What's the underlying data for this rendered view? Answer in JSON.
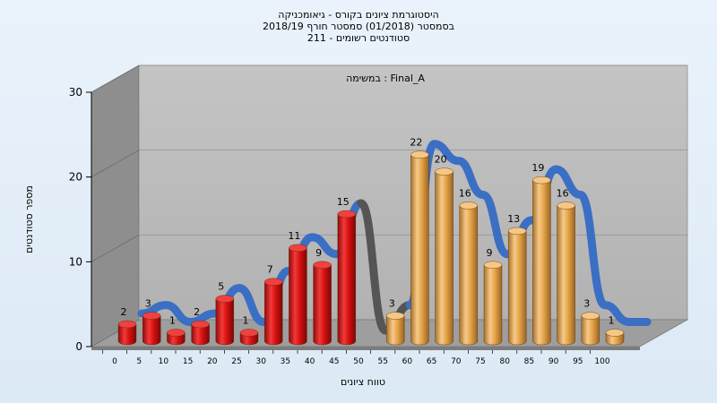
{
  "chart_data": {
    "type": "bar",
    "title_lines": [
      "היסטוגרמת ציונים בקורס - גיאומכניקה",
      "בסמסטר  (01/2018)  סמסטר חורף 2018/19",
      "סטודנטים רשומים - 211"
    ],
    "inner_label": "Final_A : במשימה",
    "xlabel": "טווח ציונים",
    "ylabel": "מספר סטודנטים",
    "ylim": [
      0,
      30
    ],
    "yticks": [
      0,
      10,
      20,
      30
    ],
    "categories": [
      "0",
      "5",
      "10",
      "15",
      "20",
      "25",
      "30",
      "35",
      "40",
      "45",
      "50",
      "55",
      "60",
      "65",
      "70",
      "75",
      "80",
      "85",
      "90",
      "95",
      "100"
    ],
    "values": [
      2,
      3,
      1,
      2,
      5,
      1,
      7,
      11,
      9,
      15,
      null,
      3,
      22,
      20,
      16,
      9,
      13,
      19,
      16,
      3,
      1
    ],
    "bar_colors": {
      "below_pass": "#d81010",
      "pass": "#e6a64a"
    },
    "pass_from_category": "55",
    "ribbon_color": "#3a6fc4",
    "ribbon_gap_color": "#555555",
    "grid": true
  }
}
